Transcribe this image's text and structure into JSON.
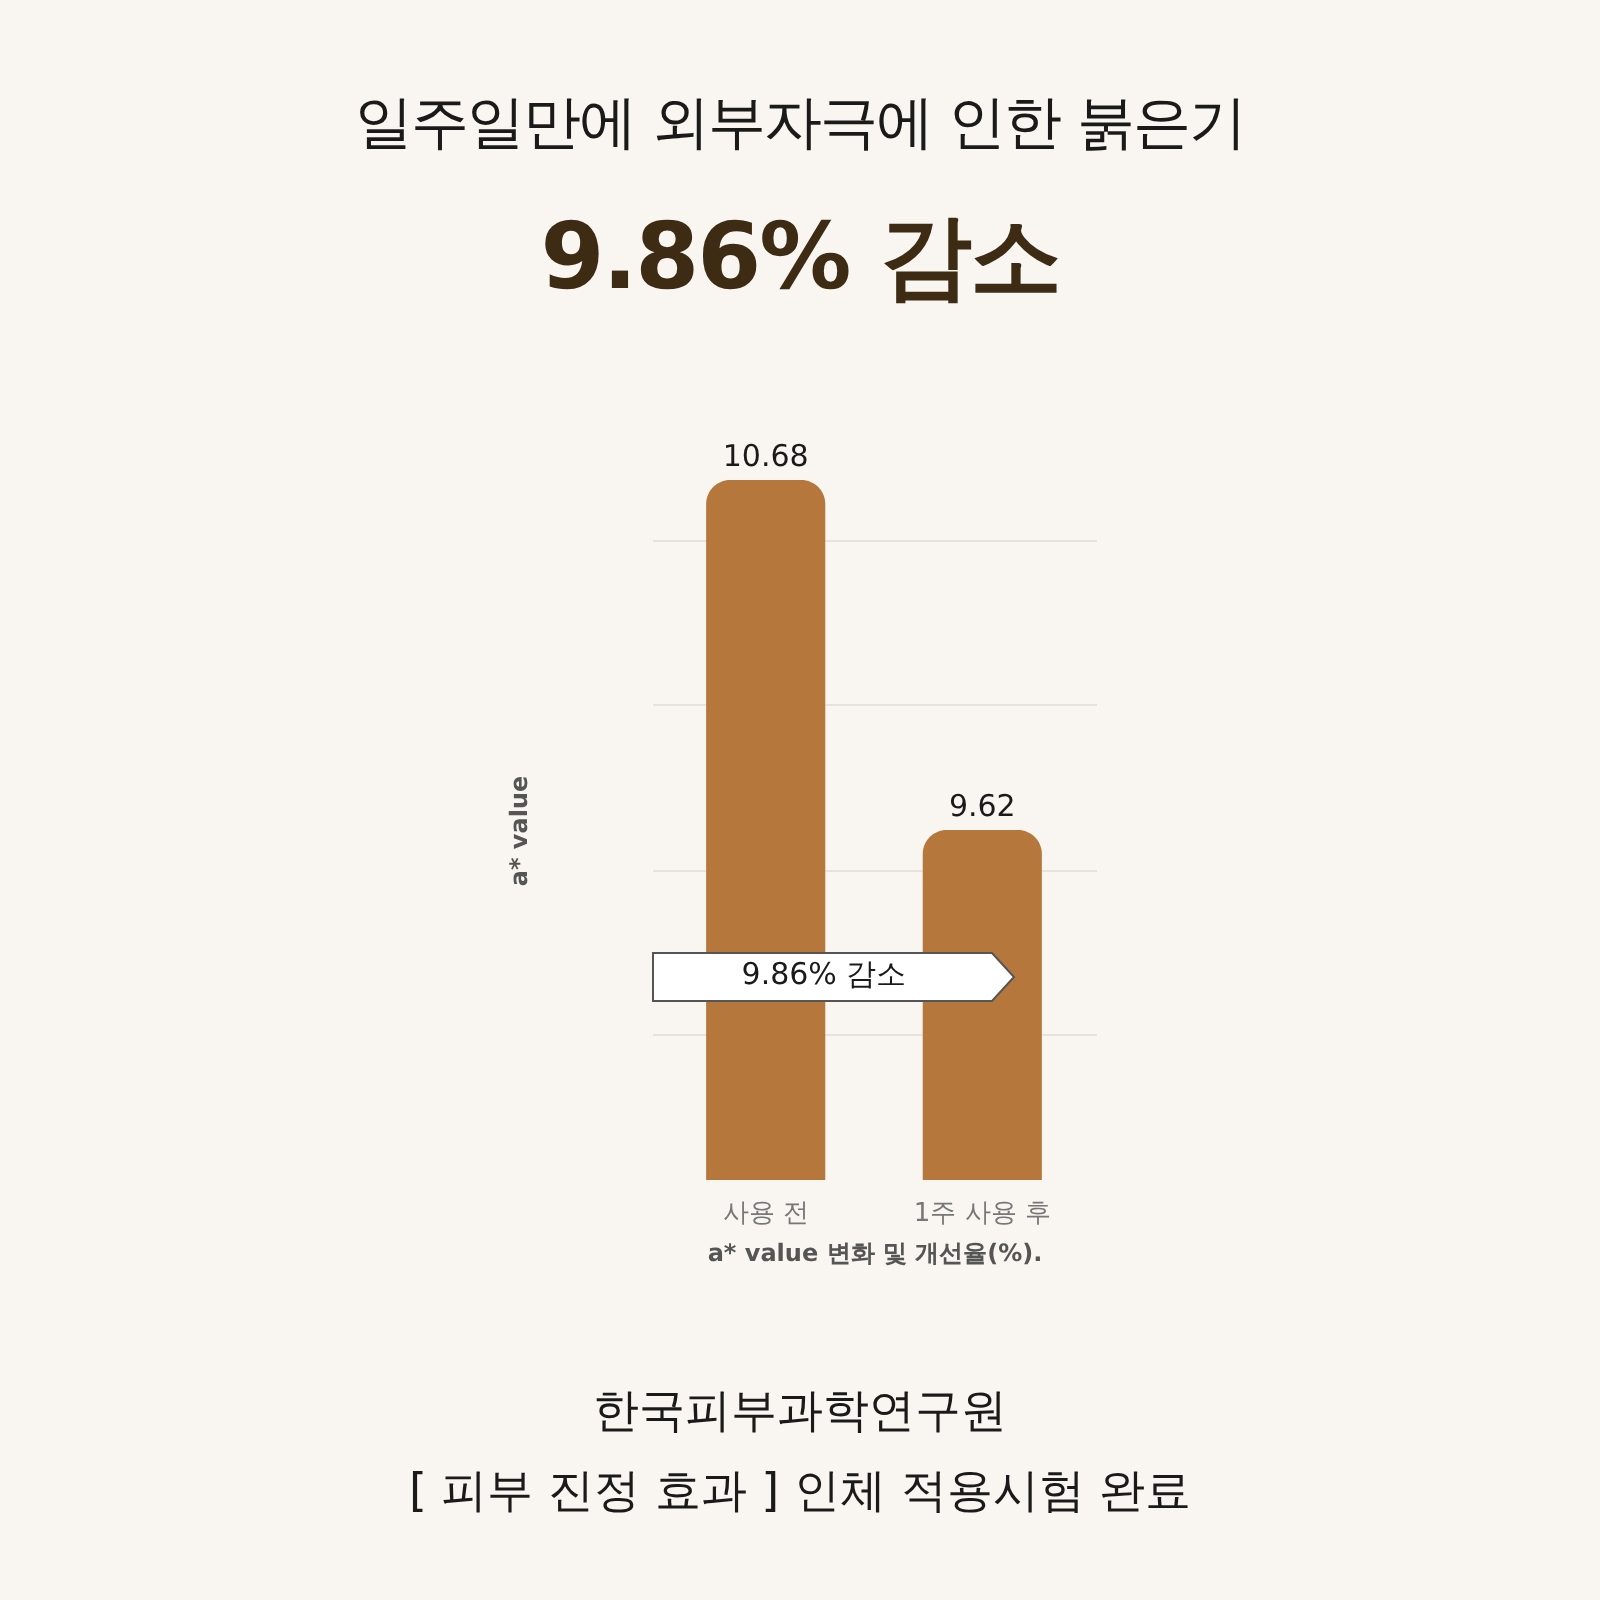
{
  "chart_data": {
    "type": "bar",
    "title": "일주일만에 외부자극에 인한 붉은기",
    "subtitle": "9.86% 감소",
    "xlabel": "a* value 변화 및 개선율(%).",
    "ylabel": "a* value",
    "categories": [
      "사용 전",
      "1주 사용 후"
    ],
    "values": [
      10.68,
      9.62
    ],
    "color": "#b5773b",
    "ylim": [
      8.56,
      10.68
    ],
    "grid": "y",
    "tick_labels": "x",
    "data_labels": true,
    "annotations": [
      "9.86% 감소",
      "한국피부과학연구원",
      "[ 피부 진정 효과 ] 인체 적용시험 완료"
    ]
  }
}
